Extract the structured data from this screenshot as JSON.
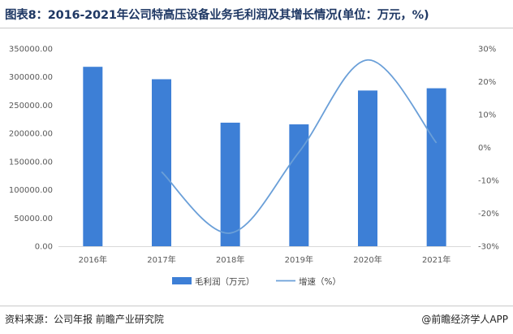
{
  "title": "图表8：2016-2021年公司特高压设备业务毛利润及其增长情况(单位：万元，%)",
  "source": "资料来源：公司年报 前瞻产业研究院",
  "credit": "@前瞻经济学人APP",
  "colors": {
    "bar": "#3d7fd6",
    "line": "#6a9fd8",
    "axis": "#d9d9d9",
    "title": "#1f3864"
  },
  "chart_data": {
    "type": "bar",
    "categories": [
      "2016年",
      "2017年",
      "2018年",
      "2019年",
      "2020年",
      "2021年"
    ],
    "series": [
      {
        "name": "毛利润（万元）",
        "type": "bar",
        "axis": "left",
        "values": [
          318000,
          296000,
          219000,
          216000,
          276000,
          280000
        ]
      },
      {
        "name": "增速（%）",
        "type": "line",
        "axis": "right",
        "smooth": true,
        "values": [
          null,
          -7.4,
          -26,
          -1.4,
          26.6,
          1.4
        ]
      }
    ],
    "y_left": {
      "ylim": [
        0,
        350000
      ],
      "ticks": [
        "0.00",
        "50000.00",
        "100000.00",
        "150000.00",
        "200000.00",
        "250000.00",
        "300000.00",
        "350000.00"
      ]
    },
    "y_right": {
      "ylim": [
        -30,
        30
      ],
      "ticks": [
        "-30%",
        "-20%",
        "-10%",
        "0%",
        "10%",
        "20%",
        "30%"
      ]
    },
    "legend": {
      "position": "bottom",
      "items": [
        "毛利润（万元）",
        "增速（%）"
      ]
    },
    "grid": false
  }
}
